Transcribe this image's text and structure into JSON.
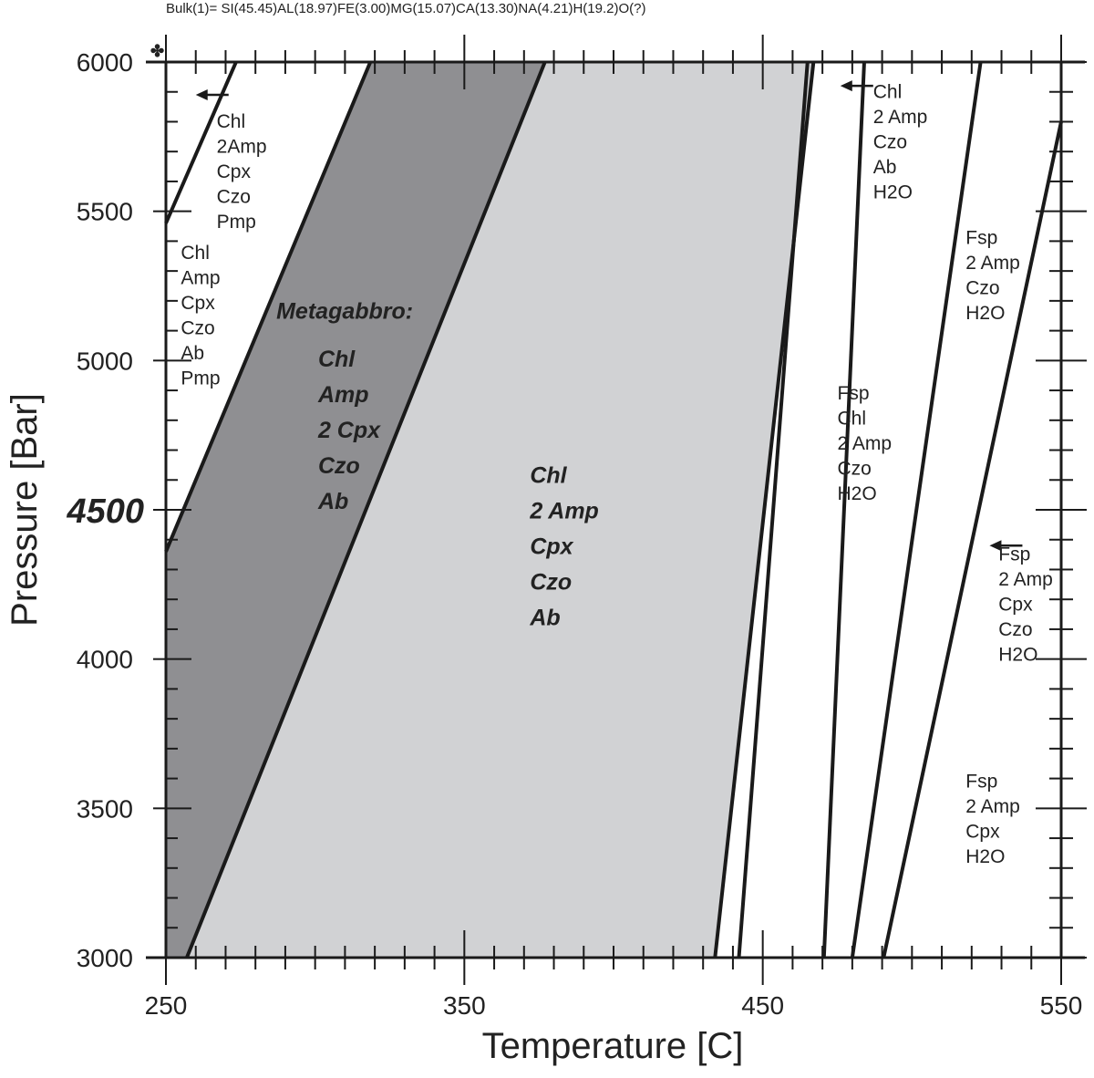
{
  "chart_data": {
    "type": "area",
    "title": "Bulk(1)= SI(45.45)AL(18.97)FE(3.00)MG(15.07)CA(13.30)NA(4.21)H(19.2)O(?)",
    "xlabel": "Temperature [C]",
    "ylabel": "Pressure [Bar]",
    "xlim": [
      250,
      550
    ],
    "ylim": [
      3000,
      6000
    ],
    "x_ticks": [
      250,
      350,
      450,
      550
    ],
    "y_ticks": [
      3000,
      3500,
      4000,
      4500,
      5000,
      5500,
      6000
    ],
    "y_tick_labels": [
      "3000",
      "3500",
      "4000",
      "4500",
      "5000",
      "5500",
      "6000"
    ],
    "highlight_y": 4500,
    "colors": {
      "dark_field": "#8f8f92",
      "light_field": "#d1d2d4",
      "line": "#1a1a1a"
    },
    "boundaries": [
      {
        "points": [
          [
            250,
            5460
          ],
          [
            273.5,
            6000
          ]
        ]
      },
      {
        "points": [
          [
            250,
            4360
          ],
          [
            318.5,
            6000
          ]
        ]
      },
      {
        "points": [
          [
            257,
            3000
          ],
          [
            377,
            6000
          ]
        ]
      },
      {
        "points": [
          [
            434,
            3000
          ],
          [
            467,
            6000
          ]
        ]
      },
      {
        "points": [
          [
            442,
            3000
          ],
          [
            465,
            6000
          ]
        ]
      },
      {
        "points": [
          [
            470.5,
            3000
          ],
          [
            484,
            6000
          ]
        ]
      },
      {
        "points": [
          [
            480,
            3000
          ],
          [
            523,
            6000
          ]
        ]
      },
      {
        "points": [
          [
            490.5,
            3000
          ],
          [
            550,
            5800
          ]
        ]
      }
    ],
    "shaded_fields": [
      {
        "shade": "dark",
        "points": [
          [
            250,
            4360
          ],
          [
            318.5,
            6000
          ],
          [
            377,
            6000
          ],
          [
            257,
            3000
          ],
          [
            250,
            3000
          ]
        ]
      },
      {
        "shade": "light",
        "points": [
          [
            257,
            3000
          ],
          [
            377,
            6000
          ],
          [
            467,
            6000
          ],
          [
            434,
            3000
          ]
        ]
      }
    ],
    "arrows": [
      {
        "from": [
          271,
          5890
        ],
        "to": [
          260,
          5890
        ]
      },
      {
        "from": [
          487,
          5920
        ],
        "to": [
          476,
          5920
        ]
      },
      {
        "from": [
          537,
          4380
        ],
        "to": [
          526,
          4380
        ]
      }
    ],
    "annotations": [
      {
        "style": "plain",
        "x": 267,
        "y": 5780,
        "lines": [
          "Chl",
          "2Amp",
          "Cpx",
          "Czo",
          "Pmp"
        ]
      },
      {
        "style": "plain",
        "x": 255,
        "y": 5340,
        "lines": [
          "Chl",
          "Amp",
          "Cpx",
          "Czo",
          "Ab",
          "Pmp"
        ]
      },
      {
        "style": "bold-italic",
        "x": 287,
        "y": 5140,
        "lines": [
          "Metagabbro:"
        ]
      },
      {
        "style": "bold-italic",
        "x": 301,
        "y": 4980,
        "lines": [
          "Chl",
          "Amp",
          "2 Cpx",
          "Czo",
          "Ab"
        ]
      },
      {
        "style": "bold-italic",
        "x": 372,
        "y": 4590,
        "lines": [
          "Chl",
          "2 Amp",
          "Cpx",
          "Czo",
          "Ab"
        ]
      },
      {
        "style": "plain",
        "x": 487,
        "y": 5880,
        "lines": [
          "Chl",
          "2 Amp",
          "Czo",
          "Ab",
          "H2O"
        ]
      },
      {
        "style": "plain",
        "x": 518,
        "y": 5390,
        "lines": [
          "Fsp",
          "2 Amp",
          "Czo",
          "H2O"
        ]
      },
      {
        "style": "plain",
        "x": 475,
        "y": 4870,
        "lines": [
          "Fsp",
          "Chl",
          "2 Amp",
          "Czo",
          "H2O"
        ]
      },
      {
        "style": "plain",
        "x": 529,
        "y": 4330,
        "lines": [
          "Fsp",
          "2 Amp",
          "Cpx",
          "Czo",
          "H2O"
        ]
      },
      {
        "style": "plain",
        "x": 518,
        "y": 3570,
        "lines": [
          "Fsp",
          "2 Amp",
          "Cpx",
          "H2O"
        ]
      }
    ]
  }
}
